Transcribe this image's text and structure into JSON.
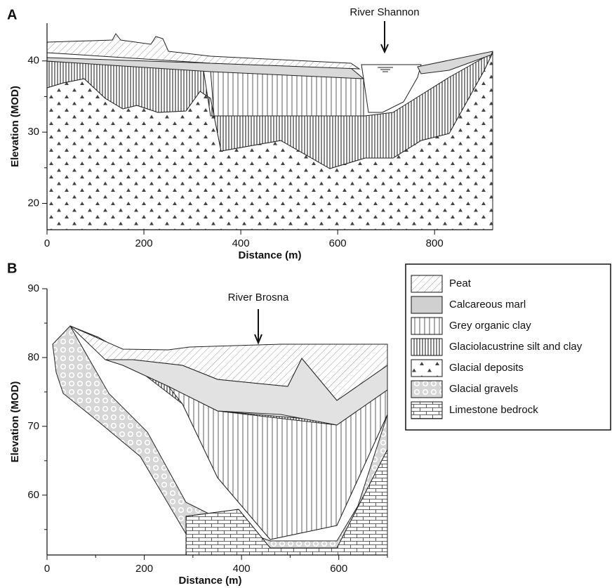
{
  "chart_data": [
    {
      "type": "cross-section",
      "panel": "A",
      "xlabel": "Distance (m)",
      "ylabel": "Elevation (MOD)",
      "annotation": "River Shannon",
      "xlim": [
        0,
        920
      ],
      "xticks": [
        0,
        200,
        400,
        600,
        800
      ],
      "ylim": [
        16.3,
        45.3
      ],
      "yticks": [
        20,
        30,
        40
      ],
      "minor_yticks": [
        25,
        35
      ]
    },
    {
      "type": "cross-section",
      "panel": "B",
      "xlabel": "Distance (m)",
      "ylabel": "Elevation (MOD)",
      "annotation": "River Brosna",
      "xlim": [
        0,
        700
      ],
      "xticks": [
        0,
        200,
        400,
        600
      ],
      "minor_xticks": [
        100,
        300,
        500,
        700
      ],
      "ylim": [
        51.3,
        90
      ],
      "yticks": [
        60,
        70,
        80,
        90
      ],
      "minor_yticks": [
        55,
        65,
        75,
        85
      ],
      "legend": [
        "Peat",
        "Calcareous marl",
        "Grey organic clay",
        "Glaciolacustrine silt and clay",
        "Glacial deposits",
        "Glacial gravels",
        "Limestone bedrock"
      ]
    }
  ]
}
